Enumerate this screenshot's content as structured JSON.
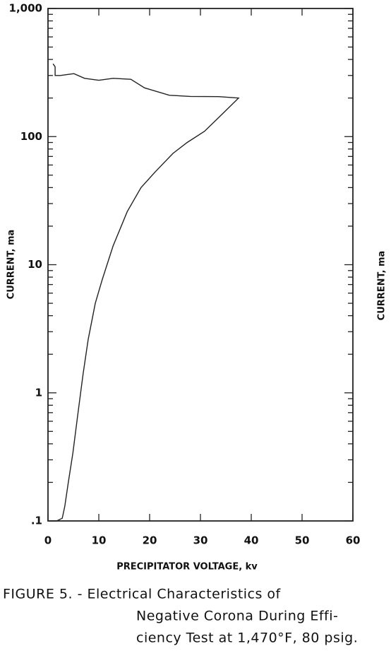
{
  "chart_data": {
    "type": "line",
    "ylabel": "CURRENT, ma",
    "y2label": "CURRENT, ma",
    "xlabel": "PRECIPITATOR VOLTAGE, kv",
    "caption": [
      "FIGURE 5. - Electrical Characteristics of",
      "Negative Corona During Effi-",
      "ciency Test at 1,470°F, 80 psig."
    ],
    "x": [
      0.3,
      1.7,
      2.8,
      3.3,
      4,
      4.9,
      5.8,
      6.9,
      7.9,
      9.3,
      10.7,
      12.8,
      15.6,
      18.3,
      21.1,
      24.6,
      27.4,
      30.8,
      34.3,
      37.5,
      33.6,
      28,
      23.9,
      19,
      16.3,
      12.8,
      10,
      7.2,
      5.1,
      2.4,
      1.4,
      1.4,
      1
    ],
    "values": [
      0.1,
      0.1,
      0.105,
      0.13,
      0.2,
      0.34,
      0.65,
      1.4,
      2.6,
      5,
      7.7,
      14,
      26,
      40,
      53,
      74,
      90,
      110,
      150,
      200,
      205,
      206,
      210,
      240,
      280,
      285,
      275,
      285,
      310,
      300,
      300,
      350,
      370
    ],
    "color": "#222222",
    "xlim": [
      0,
      60
    ],
    "xticks": [
      0,
      10,
      20,
      30,
      40,
      50,
      60
    ],
    "ylim": [
      0.1,
      1000
    ],
    "yscale": "log",
    "yticks": [
      {
        "value": 0.1,
        "label": ".1"
      },
      1,
      10,
      100,
      {
        "value": 1000,
        "label": "1,000"
      }
    ],
    "yminorticks": [
      0.2,
      0.3,
      0.4,
      0.5,
      0.6,
      0.7,
      0.8,
      0.9,
      2,
      3,
      4,
      5,
      6,
      7,
      8,
      9,
      20,
      30,
      40,
      50,
      60,
      70,
      80,
      90,
      200,
      300,
      400,
      500,
      600,
      700,
      800,
      900
    ]
  }
}
